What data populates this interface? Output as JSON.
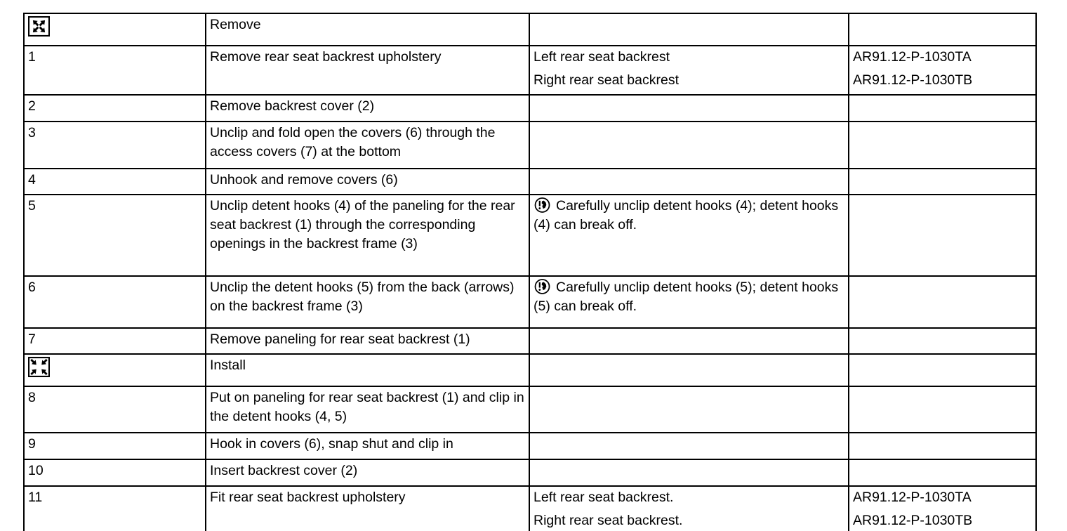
{
  "document": {
    "kind": "workshop-manual-procedure-table",
    "text_color": "#000000",
    "border_color": "#000000",
    "background_color": "#ffffff"
  },
  "table": {
    "columns": [
      "step",
      "action",
      "note",
      "document_ref"
    ],
    "rows": [
      {
        "kind": "section",
        "icon": "expand-arrows-icon",
        "title": "Remove"
      },
      {
        "kind": "step",
        "num": "1",
        "action": "Remove rear seat backrest upholstery",
        "notes": [
          "Left rear seat backrest",
          "Right rear seat backrest"
        ],
        "docs": [
          "AR91.12-P-1030TA",
          "AR91.12-P-1030TB"
        ]
      },
      {
        "kind": "step",
        "num": "2",
        "action": "Remove backrest cover (2)"
      },
      {
        "kind": "step",
        "num": "3",
        "action": "Unclip and fold open the covers (6) through the access covers (7) at the bottom"
      },
      {
        "kind": "step",
        "num": "4",
        "action": "Unhook and remove covers (6)"
      },
      {
        "kind": "step",
        "num": "5",
        "action": "Unclip detent hooks (4) of the paneling for the rear seat backrest (1) through the corresponding openings in the backrest frame (3)",
        "warning": "Carefully unclip detent hooks (4);  detent hooks (4) can break off."
      },
      {
        "kind": "step",
        "num": "6",
        "action": "Unclip the detent hooks (5) from the back (arrows) on the backrest frame (3)",
        "warning": "Carefully unclip detent hooks (5);  detent hooks (5) can break off."
      },
      {
        "kind": "step",
        "num": "7",
        "action": "Remove paneling for rear seat backrest (1)"
      },
      {
        "kind": "section",
        "icon": "collapse-arrows-icon",
        "title": "Install"
      },
      {
        "kind": "step",
        "num": "8",
        "action": "Put on paneling for rear seat backrest (1) and clip in the detent hooks (4, 5)"
      },
      {
        "kind": "step",
        "num": "9",
        "action": "Hook in covers (6), snap shut and clip in"
      },
      {
        "kind": "step",
        "num": "10",
        "action": "Insert backrest cover (2)"
      },
      {
        "kind": "step",
        "num": "11",
        "action": "Fit rear seat backrest upholstery",
        "notes": [
          "Left rear seat backrest.",
          "Right rear seat backrest."
        ],
        "docs": [
          "AR91.12-P-1030TA",
          "AR91.12-P-1030TB"
        ]
      }
    ]
  }
}
